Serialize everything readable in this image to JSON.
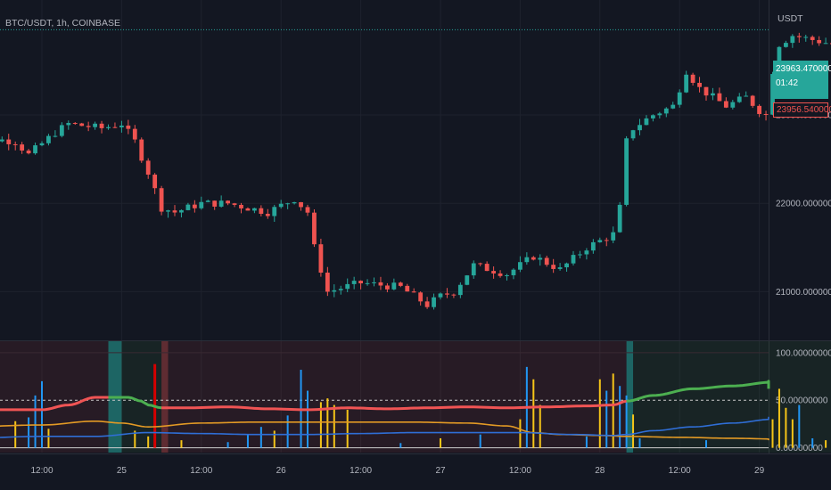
{
  "header": {
    "symbol": "BTC/USDT, 1h, COINBASE",
    "currency": "USDT"
  },
  "price_tags": {
    "last_price": "23963.47000000",
    "countdown": "01:42",
    "second_price": "23956.54000000"
  },
  "colors": {
    "background": "#131722",
    "up": "#26a69a",
    "down": "#ef5350",
    "grid": "#1e222d",
    "last_price_tag": "#26a69a",
    "osc_green": "#4caf50",
    "osc_red": "#f05454",
    "osc_orange": "#e39a25",
    "osc_blue": "#2f6ed6",
    "bar_yellow": "#f5c518",
    "bar_blue": "#2196f3"
  },
  "chart_data": [
    {
      "type": "candlestick",
      "title": "BTC/USDT, 1h, COINBASE",
      "ylabel": "USDT",
      "ylim": [
        20450,
        24300
      ],
      "y_ticks": [
        "21000.00000000",
        "22000.00000000",
        "23000.00000000"
      ],
      "y_tick_values": [
        21000,
        22000,
        23000
      ],
      "x_ticks": [
        "12:00",
        "25",
        "12:00",
        "26",
        "12:00",
        "27",
        "12:00",
        "28",
        "12:00",
        "29"
      ],
      "x_tick_hours": [
        0,
        12,
        24,
        36,
        48,
        60,
        72,
        84,
        96,
        108
      ],
      "first_bar_hour": -12,
      "close_anchors": [
        [
          -12,
          22400
        ],
        [
          -10,
          22750
        ],
        [
          -4,
          22700
        ],
        [
          -2,
          22550
        ],
        [
          2,
          22800
        ],
        [
          4,
          22900
        ],
        [
          9,
          22850
        ],
        [
          12,
          22900
        ],
        [
          14,
          22700
        ],
        [
          16,
          22350
        ],
        [
          18,
          21950
        ],
        [
          20,
          21900
        ],
        [
          24,
          22000
        ],
        [
          28,
          22000
        ],
        [
          34,
          21900
        ],
        [
          38,
          22050
        ],
        [
          40,
          21900
        ],
        [
          41,
          21500
        ],
        [
          43,
          21000
        ],
        [
          48,
          21100
        ],
        [
          54,
          21050
        ],
        [
          58,
          20850
        ],
        [
          60,
          20950
        ],
        [
          62,
          21000
        ],
        [
          65,
          21300
        ],
        [
          70,
          21200
        ],
        [
          74,
          21400
        ],
        [
          78,
          21250
        ],
        [
          82,
          21500
        ],
        [
          86,
          21650
        ],
        [
          87,
          21950
        ],
        [
          88,
          22700
        ],
        [
          89,
          22850
        ],
        [
          92,
          23000
        ],
        [
          95,
          23100
        ],
        [
          97,
          23500
        ],
        [
          99,
          23300
        ],
        [
          101,
          23200
        ],
        [
          103,
          23100
        ],
        [
          106,
          23200
        ],
        [
          108,
          23050
        ],
        [
          109,
          23000
        ],
        [
          110,
          23500
        ],
        [
          111,
          23800
        ],
        [
          113,
          23900
        ],
        [
          116,
          23850
        ],
        [
          119,
          23800
        ],
        [
          121,
          23950
        ]
      ],
      "last_price": 23963.47,
      "grid": true
    },
    {
      "type": "oscillator",
      "ylim": [
        -5,
        112
      ],
      "y_ticks": [
        "0.00000000",
        "50.00000000",
        "100.00000000"
      ],
      "y_tick_values": [
        0,
        50,
        100
      ],
      "dashed_level": 50,
      "series": [
        {
          "color": "#f05454/#4caf50",
          "hours": [
            -12,
            0,
            4,
            8,
            13,
            15,
            16,
            18,
            22,
            28,
            34,
            40,
            46,
            52,
            58,
            64,
            70,
            76,
            82,
            86,
            88,
            92,
            98,
            104,
            110,
            114,
            118,
            122
          ],
          "values": [
            40,
            40,
            45,
            53,
            53,
            49,
            45,
            42,
            42,
            43,
            41,
            40,
            42,
            41,
            42,
            43,
            42,
            43,
            44,
            45,
            49,
            55,
            62,
            65,
            69,
            70,
            66,
            62
          ]
        },
        {
          "color": "#e39a25",
          "hours": [
            -12,
            0,
            8,
            12,
            16,
            24,
            32,
            40,
            48,
            56,
            64,
            70,
            74,
            78,
            84,
            88,
            96,
            104,
            112,
            122
          ],
          "values": [
            22,
            24,
            28,
            26,
            22,
            26,
            27,
            27,
            27,
            27,
            26,
            23,
            16,
            14,
            13,
            12,
            11,
            10,
            9,
            8
          ]
        },
        {
          "color": "#2f6ed6",
          "hours": [
            -12,
            0,
            8,
            16,
            24,
            32,
            40,
            48,
            56,
            64,
            72,
            80,
            86,
            88,
            92,
            98,
            104,
            110,
            116,
            122
          ],
          "values": [
            10,
            12,
            12,
            16,
            15,
            14,
            14,
            15,
            16,
            16,
            16,
            14,
            13,
            14,
            18,
            22,
            26,
            30,
            32,
            31
          ]
        }
      ],
      "spike_bars": [
        {
          "hour": -8,
          "value": 15,
          "color": "#f5c518"
        },
        {
          "hour": -4,
          "value": 28,
          "color": "#f5c518"
        },
        {
          "hour": -2,
          "value": 32,
          "color": "#2196f3"
        },
        {
          "hour": -1,
          "value": 55,
          "color": "#2196f3"
        },
        {
          "hour": 0,
          "value": 70,
          "color": "#2196f3"
        },
        {
          "hour": 1,
          "value": 20,
          "color": "#f5c518"
        },
        {
          "hour": 14,
          "value": 18,
          "color": "#f5c518"
        },
        {
          "hour": 16,
          "value": 12,
          "color": "#f5c518"
        },
        {
          "hour": 17,
          "value": 88,
          "color": "#d50000"
        },
        {
          "hour": 21,
          "value": 8,
          "color": "#f5c518"
        },
        {
          "hour": 28,
          "value": 6,
          "color": "#2196f3"
        },
        {
          "hour": 31,
          "value": 14,
          "color": "#2196f3"
        },
        {
          "hour": 33,
          "value": 22,
          "color": "#2196f3"
        },
        {
          "hour": 35,
          "value": 18,
          "color": "#f5c518"
        },
        {
          "hour": 37,
          "value": 34,
          "color": "#2196f3"
        },
        {
          "hour": 39,
          "value": 82,
          "color": "#2196f3"
        },
        {
          "hour": 40,
          "value": 60,
          "color": "#2196f3"
        },
        {
          "hour": 42,
          "value": 48,
          "color": "#f5c518"
        },
        {
          "hour": 43,
          "value": 52,
          "color": "#f5c518"
        },
        {
          "hour": 44,
          "value": 45,
          "color": "#f5c518"
        },
        {
          "hour": 46,
          "value": 40,
          "color": "#f5c518"
        },
        {
          "hour": 54,
          "value": 5,
          "color": "#2196f3"
        },
        {
          "hour": 60,
          "value": 10,
          "color": "#f5c518"
        },
        {
          "hour": 66,
          "value": 14,
          "color": "#2196f3"
        },
        {
          "hour": 72,
          "value": 30,
          "color": "#f5c518"
        },
        {
          "hour": 73,
          "value": 85,
          "color": "#2196f3"
        },
        {
          "hour": 74,
          "value": 72,
          "color": "#f5c518"
        },
        {
          "hour": 75,
          "value": 45,
          "color": "#f5c518"
        },
        {
          "hour": 82,
          "value": 12,
          "color": "#2196f3"
        },
        {
          "hour": 84,
          "value": 72,
          "color": "#f5c518"
        },
        {
          "hour": 85,
          "value": 60,
          "color": "#2196f3"
        },
        {
          "hour": 86,
          "value": 78,
          "color": "#f5c518"
        },
        {
          "hour": 87,
          "value": 65,
          "color": "#2196f3"
        },
        {
          "hour": 88,
          "value": 55,
          "color": "#2196f3"
        },
        {
          "hour": 89,
          "value": 35,
          "color": "#f5c518"
        },
        {
          "hour": 90,
          "value": 10,
          "color": "#2196f3"
        },
        {
          "hour": 100,
          "value": 8,
          "color": "#2196f3"
        },
        {
          "hour": 110,
          "value": 30,
          "color": "#f5c518"
        },
        {
          "hour": 111,
          "value": 62,
          "color": "#f5c518"
        },
        {
          "hour": 112,
          "value": 42,
          "color": "#f5c518"
        },
        {
          "hour": 113,
          "value": 30,
          "color": "#f5c518"
        },
        {
          "hour": 114,
          "value": 45,
          "color": "#2196f3"
        },
        {
          "hour": 116,
          "value": 10,
          "color": "#2196f3"
        },
        {
          "hour": 118,
          "value": 8,
          "color": "#f5c518"
        }
      ],
      "zones": [
        {
          "from_hour": -12,
          "to_hour": 10,
          "color": "red"
        },
        {
          "from_hour": 10,
          "to_hour": 12,
          "color": "green_strong"
        },
        {
          "from_hour": 12,
          "to_hour": 18,
          "color": "green"
        },
        {
          "from_hour": 18,
          "to_hour": 19,
          "color": "red_strong"
        },
        {
          "from_hour": 19,
          "to_hour": 88,
          "color": "red"
        },
        {
          "from_hour": 88,
          "to_hour": 89,
          "color": "green_strong"
        },
        {
          "from_hour": 89,
          "to_hour": 122,
          "color": "green"
        }
      ],
      "grid": true
    }
  ]
}
